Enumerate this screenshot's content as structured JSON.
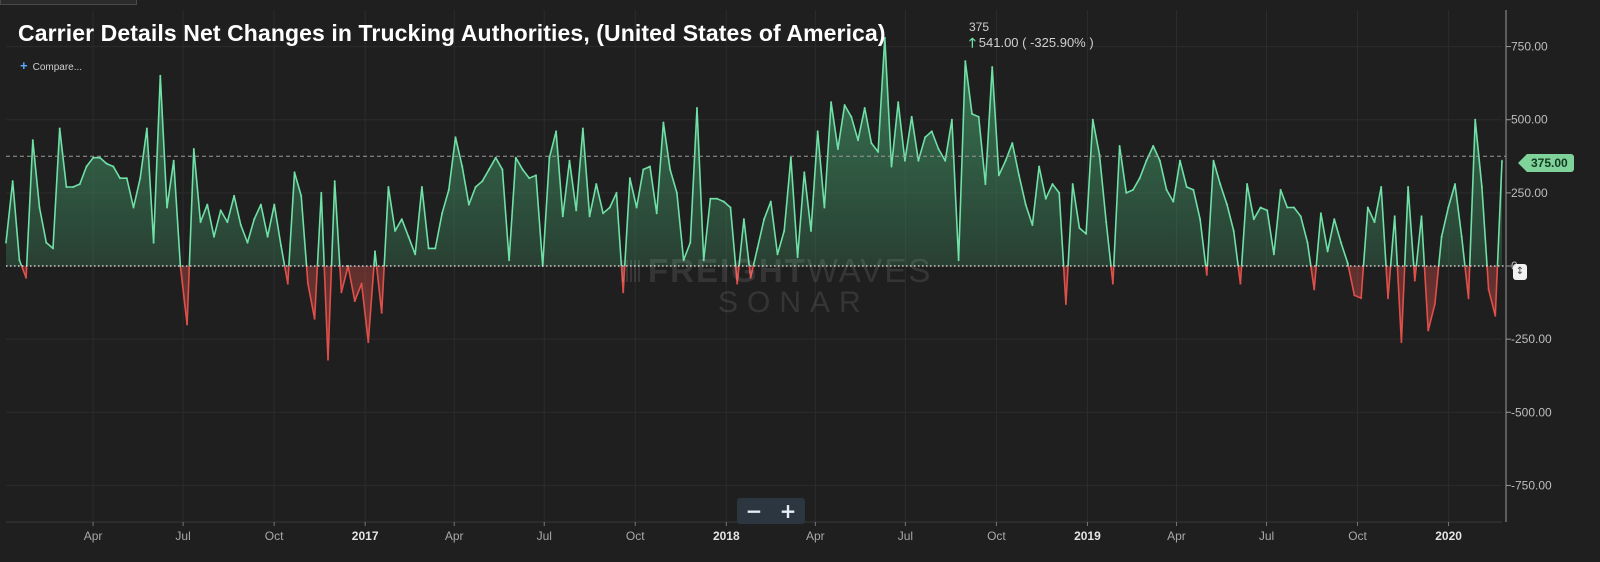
{
  "header": {
    "title": "Carrier Details Net Changes in Trucking Authorities, (United States of America)",
    "last_value": "375",
    "change": "541.00 ( -325.90% )",
    "up_arrow": "🡑",
    "compare_label": "Compare..."
  },
  "watermark": {
    "brand_bold": "FREIGHT",
    "brand_light": "WAVES",
    "product": "SONAR"
  },
  "controls": {
    "zoom_out": "−",
    "zoom_in": "+"
  },
  "reference": {
    "label": "375.00",
    "value": 375
  },
  "colors": {
    "positive": "#6fe0a6",
    "negative": "#e0504a",
    "area_top": "#3e8a5f",
    "background": "#1f1f1f",
    "grid": "#2c2c2c",
    "zero_line": "#f2f2f2",
    "ref_tag": "#7fd39a"
  },
  "chart_data": {
    "type": "area",
    "x_unit": "week",
    "x_start": "2016-01-04",
    "x_end": "2020-02-24",
    "ylim": [
      -875,
      875
    ],
    "yticks": [
      750,
      500,
      250,
      0,
      -250,
      -500,
      -750
    ],
    "ytick_labels": [
      "750.00",
      "500.00",
      "250.00",
      "0",
      "-250.00",
      "-500.00",
      "-750.00"
    ],
    "grid": true,
    "reference_line": 375,
    "xticks": [
      {
        "date": "2016-04-01",
        "label": "Apr"
      },
      {
        "date": "2016-07-01",
        "label": "Jul"
      },
      {
        "date": "2016-10-01",
        "label": "Oct"
      },
      {
        "date": "2017-01-01",
        "label": "2017"
      },
      {
        "date": "2017-04-01",
        "label": "Apr"
      },
      {
        "date": "2017-07-01",
        "label": "Jul"
      },
      {
        "date": "2017-10-01",
        "label": "Oct"
      },
      {
        "date": "2018-01-01",
        "label": "2018"
      },
      {
        "date": "2018-04-01",
        "label": "Apr"
      },
      {
        "date": "2018-07-01",
        "label": "Jul"
      },
      {
        "date": "2018-10-01",
        "label": "Oct"
      },
      {
        "date": "2019-01-01",
        "label": "2019"
      },
      {
        "date": "2019-04-01",
        "label": "Apr"
      },
      {
        "date": "2019-07-01",
        "label": "Jul"
      },
      {
        "date": "2019-10-01",
        "label": "Oct"
      },
      {
        "date": "2020-01-01",
        "label": "2020"
      }
    ],
    "series": [
      {
        "values": [
          80,
          290,
          20,
          -40,
          430,
          200,
          80,
          60,
          470,
          270,
          270,
          280,
          340,
          370,
          370,
          350,
          340,
          300,
          300,
          200,
          300,
          470,
          80,
          650,
          200,
          360,
          0,
          -200,
          400,
          150,
          210,
          100,
          190,
          150,
          240,
          140,
          80,
          160,
          210,
          100,
          210,
          70,
          -60,
          320,
          240,
          -60,
          -180,
          250,
          -320,
          290,
          -90,
          0,
          -120,
          -60,
          -260,
          50,
          -160,
          270,
          120,
          160,
          100,
          40,
          270,
          60,
          60,
          180,
          260,
          440,
          340,
          210,
          270,
          290,
          330,
          370,
          330,
          20,
          370,
          330,
          300,
          310,
          0,
          370,
          460,
          170,
          360,
          190,
          470,
          170,
          280,
          180,
          200,
          250,
          -90,
          300,
          200,
          330,
          340,
          180,
          490,
          330,
          250,
          20,
          80,
          540,
          20,
          230,
          230,
          220,
          200,
          -60,
          160,
          -40,
          60,
          160,
          220,
          40,
          120,
          370,
          30,
          320,
          120,
          460,
          200,
          560,
          400,
          550,
          510,
          430,
          540,
          420,
          390,
          780,
          340,
          560,
          360,
          510,
          360,
          440,
          460,
          400,
          360,
          500,
          20,
          700,
          520,
          510,
          280,
          680,
          310,
          360,
          420,
          310,
          210,
          140,
          340,
          230,
          280,
          250,
          -130,
          280,
          130,
          110,
          500,
          380,
          150,
          -60,
          410,
          250,
          260,
          300,
          360,
          410,
          360,
          260,
          220,
          360,
          270,
          260,
          160,
          -30,
          360,
          280,
          210,
          120,
          -60,
          280,
          160,
          200,
          190,
          40,
          260,
          200,
          200,
          170,
          80,
          -80,
          180,
          50,
          160,
          80,
          10,
          -100,
          -110,
          200,
          150,
          270,
          -110,
          170,
          -260,
          270,
          -50,
          170,
          -220,
          -130,
          100,
          200,
          280,
          100,
          -110,
          500,
          270,
          -80,
          -170,
          360
        ]
      }
    ]
  }
}
